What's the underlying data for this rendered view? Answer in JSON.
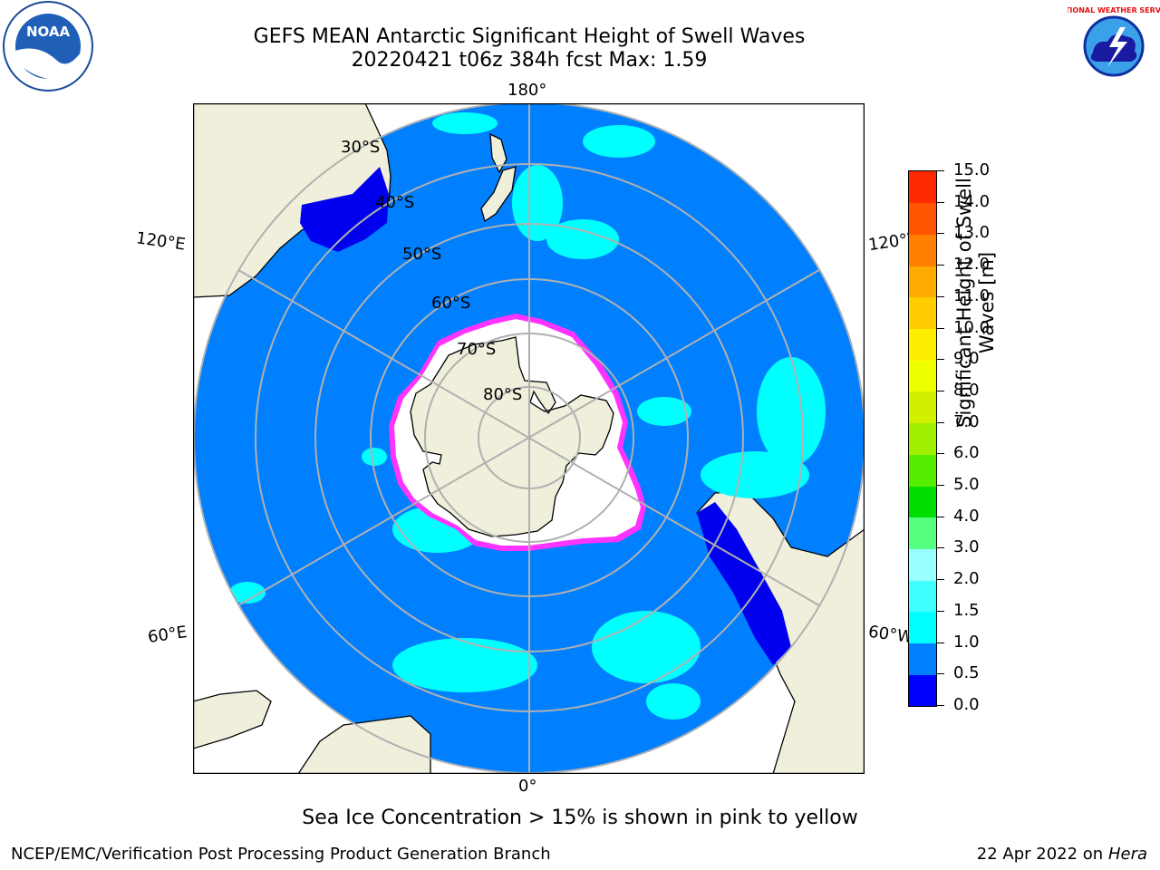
{
  "title_line1": "GEFS MEAN Antarctic Significant Height of Swell Waves",
  "title_line2": "20220421 t06z 384h fcst   Max: 1.59",
  "logos": {
    "left": "noaa-logo",
    "right": "national-weather-service-logo",
    "left_text": "NOAA",
    "right_text": "NATIONAL WEATHER SERVICE"
  },
  "map": {
    "projection": "south-polar-stereographic",
    "lon_labels": {
      "top": "180°",
      "bottom": "0°",
      "left_upper": "120°E",
      "right_upper": "120°W",
      "left_lower": "60°E",
      "right_lower": "60°W"
    },
    "lat_labels": [
      "30°S",
      "40°S",
      "50°S",
      "60°S",
      "70°S",
      "80°S"
    ],
    "colors": {
      "land": "#efefdc",
      "ocean_low": "#0080ff",
      "deep_swell": "#0000ee",
      "cyan_swell": "#00ffff",
      "ice_white": "#ffffff",
      "ice_edge": "#ff33ff",
      "graticule": "#b0b0b0"
    }
  },
  "colorbar": {
    "label_line1": "Significant Height of Swell",
    "label_line2": "Waves [m]",
    "ticks": [
      "0.0",
      "0.5",
      "1.0",
      "1.5",
      "2.0",
      "3.0",
      "4.0",
      "5.0",
      "6.0",
      "7.0",
      "8.0",
      "9.0",
      "10.0",
      "11.0",
      "12.0",
      "13.0",
      "14.0",
      "15.0"
    ],
    "colors": [
      "#0000ff",
      "#0080ff",
      "#00ffff",
      "#40ffff",
      "#9affff",
      "#55ff80",
      "#00dd00",
      "#55ee00",
      "#a0ee00",
      "#d0f000",
      "#eeff00",
      "#ffee00",
      "#ffcc00",
      "#ffaa00",
      "#ff8000",
      "#ff5500",
      "#ff2a00"
    ]
  },
  "note": "Sea Ice Concentration > 15% is shown in pink to yellow",
  "footer_left": "NCEP/EMC/Verification Post Processing Product Generation Branch",
  "footer_right_prefix": "22 Apr 2022 on ",
  "footer_right_host": "Hera"
}
